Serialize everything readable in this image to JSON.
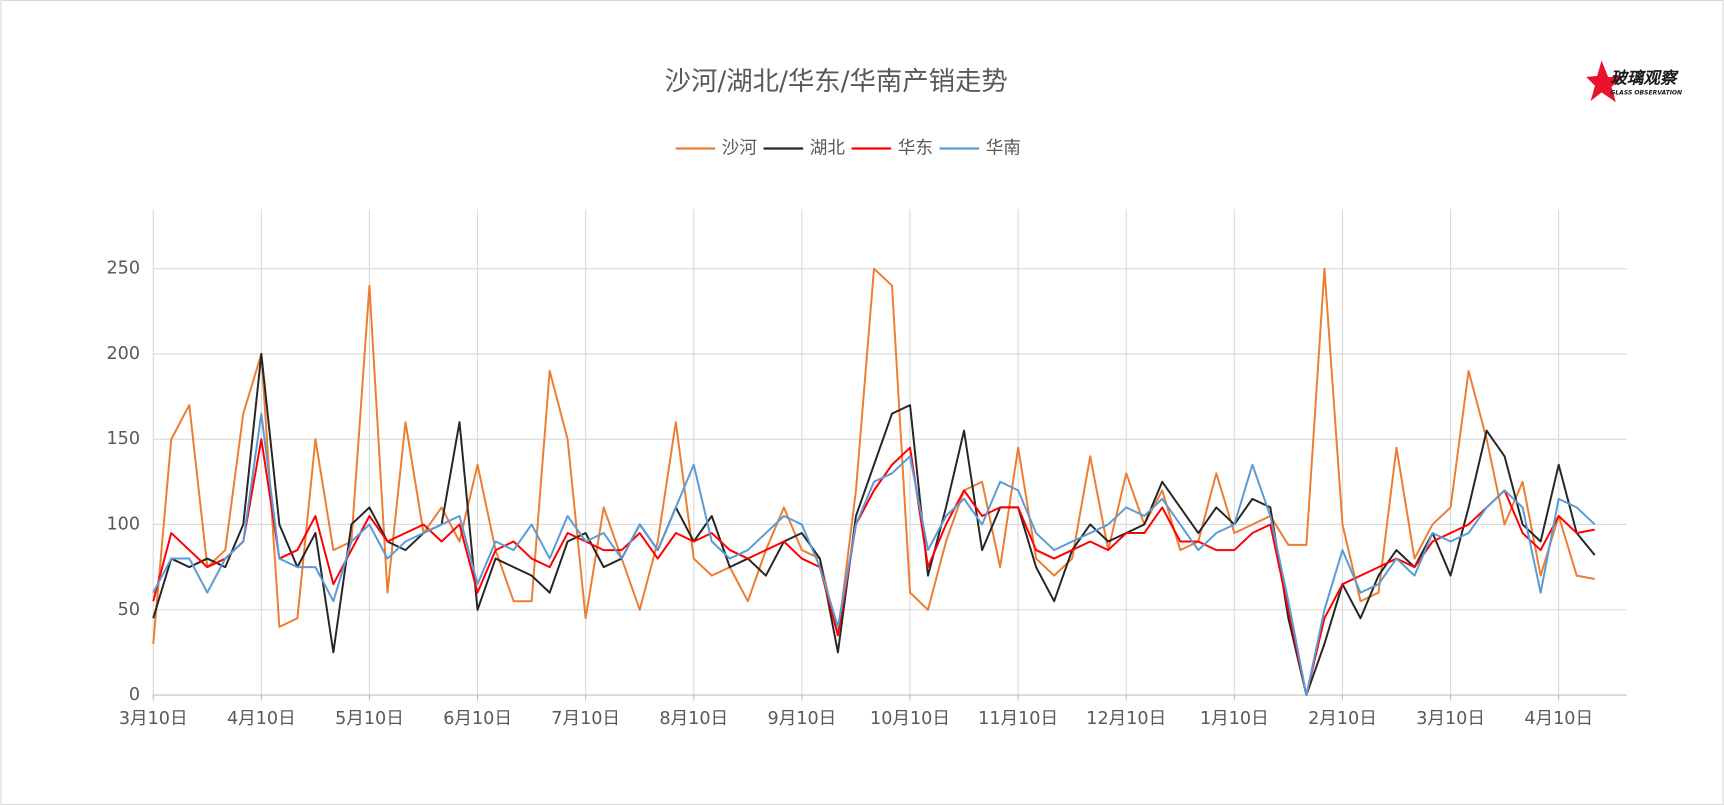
{
  "logo": {
    "name": "玻璃观察",
    "subtitle": "GLASS OBSERVATION"
  },
  "chart_data": {
    "type": "line",
    "title": "沙河/湖北/华东/华南产销走势",
    "categories": [
      "3月10日",
      null,
      null,
      null,
      null,
      null,
      "4月10日",
      null,
      null,
      null,
      null,
      null,
      "5月10日",
      null,
      null,
      null,
      null,
      null,
      "6月10日",
      null,
      null,
      null,
      null,
      null,
      "7月10日",
      null,
      null,
      null,
      null,
      null,
      "8月10日",
      null,
      null,
      null,
      null,
      null,
      "9月10日",
      null,
      null,
      null,
      null,
      null,
      "10月10日",
      null,
      null,
      null,
      null,
      null,
      "11月10日",
      null,
      null,
      null,
      null,
      null,
      "12月10日",
      null,
      null,
      null,
      null,
      null,
      "1月10日",
      null,
      null,
      null,
      null,
      null,
      "2月10日",
      null,
      null,
      null,
      null,
      null,
      "3月10日",
      null,
      null,
      null,
      null,
      null,
      "4月10日",
      null,
      null
    ],
    "series": [
      {
        "name": "沙河",
        "color": "#ed7d31",
        "values": [
          30,
          150,
          170,
          75,
          85,
          165,
          200,
          40,
          45,
          150,
          85,
          90,
          240,
          60,
          160,
          95,
          110,
          90,
          135,
          85,
          55,
          55,
          190,
          150,
          45,
          110,
          80,
          50,
          90,
          160,
          80,
          70,
          75,
          55,
          85,
          110,
          85,
          80,
          35,
          120,
          250,
          240,
          60,
          50,
          90,
          120,
          125,
          75,
          145,
          80,
          70,
          80,
          140,
          85,
          130,
          100,
          120,
          85,
          90,
          130,
          95,
          100,
          105,
          88,
          88,
          250,
          100,
          55,
          60,
          145,
          80,
          100,
          110,
          190,
          150,
          100,
          125,
          70,
          105,
          70,
          68
        ]
      },
      {
        "name": "湖北",
        "color": "#262626",
        "values": [
          45,
          80,
          75,
          80,
          75,
          100,
          200,
          100,
          75,
          95,
          25,
          100,
          110,
          90,
          85,
          95,
          100,
          160,
          50,
          80,
          75,
          70,
          60,
          90,
          95,
          75,
          80,
          100,
          85,
          110,
          90,
          105,
          75,
          80,
          70,
          90,
          95,
          80,
          25,
          105,
          135,
          165,
          170,
          70,
          110,
          155,
          85,
          110,
          110,
          75,
          55,
          85,
          100,
          90,
          95,
          100,
          125,
          110,
          95,
          110,
          100,
          115,
          110,
          45,
          0,
          30,
          65,
          45,
          70,
          85,
          75,
          95,
          70,
          110,
          155,
          140,
          100,
          90,
          135,
          95,
          82
        ]
      },
      {
        "name": "华东",
        "color": "#ff0000",
        "values": [
          55,
          95,
          85,
          75,
          80,
          90,
          150,
          80,
          85,
          105,
          65,
          85,
          105,
          90,
          95,
          100,
          90,
          100,
          60,
          85,
          90,
          80,
          75,
          95,
          90,
          85,
          85,
          95,
          80,
          95,
          90,
          95,
          85,
          80,
          85,
          90,
          80,
          75,
          35,
          100,
          120,
          135,
          145,
          75,
          100,
          120,
          105,
          110,
          110,
          85,
          80,
          85,
          90,
          85,
          95,
          95,
          110,
          90,
          90,
          85,
          85,
          95,
          100,
          50,
          0,
          45,
          65,
          70,
          75,
          80,
          75,
          90,
          95,
          100,
          110,
          120,
          95,
          85,
          105,
          95,
          97
        ]
      },
      {
        "name": "华南",
        "color": "#5b9bd5",
        "values": [
          60,
          80,
          80,
          60,
          80,
          90,
          165,
          80,
          75,
          75,
          55,
          90,
          100,
          80,
          90,
          95,
          100,
          105,
          65,
          90,
          85,
          100,
          80,
          105,
          90,
          95,
          80,
          100,
          85,
          110,
          135,
          90,
          80,
          85,
          95,
          105,
          100,
          75,
          40,
          100,
          125,
          130,
          140,
          85,
          105,
          115,
          100,
          125,
          120,
          95,
          85,
          90,
          95,
          100,
          110,
          105,
          115,
          100,
          85,
          95,
          100,
          135,
          105,
          55,
          0,
          50,
          85,
          60,
          65,
          80,
          70,
          95,
          90,
          95,
          110,
          120,
          110,
          60,
          115,
          110,
          100
        ]
      }
    ],
    "ylim": [
      0,
      285
    ],
    "yticks": [
      0,
      50,
      100,
      150,
      200,
      250
    ],
    "grid": true,
    "legend": "top"
  }
}
